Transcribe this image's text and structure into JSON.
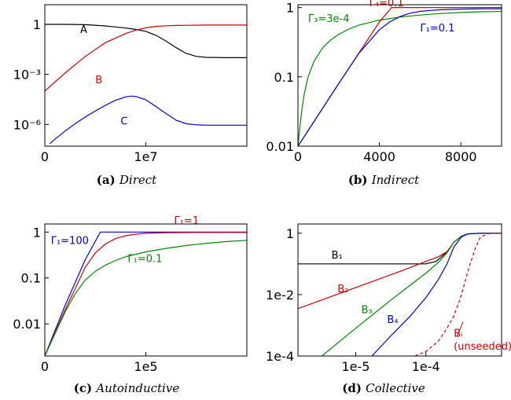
{
  "chart_data": [
    {
      "type": "line",
      "caption": {
        "label": "(a)",
        "title": "Direct"
      },
      "x_scale": "linear",
      "y_scale": "log",
      "xlim": [
        0,
        20000000
      ],
      "ylim": [
        5e-08,
        15
      ],
      "x_ticks": [
        {
          "value": 0,
          "label": "0"
        },
        {
          "value": 10000000,
          "label": "1e7"
        }
      ],
      "y_ticks": [
        {
          "value": 1,
          "label": "1"
        },
        {
          "value": 0.001,
          "label": "10⁻³"
        },
        {
          "value": 1e-06,
          "label": "10⁻⁶"
        }
      ],
      "series": [
        {
          "name": "A",
          "color": "#000000",
          "x": [
            0,
            2000000,
            4000000,
            6000000,
            7000000,
            8000000,
            9000000,
            10000000,
            11000000,
            12000000,
            13000000,
            14000000,
            15000000,
            16000000,
            18000000,
            20000000
          ],
          "y": [
            1,
            1,
            0.95,
            0.8,
            0.7,
            0.6,
            0.5,
            0.38,
            0.22,
            0.1,
            0.04,
            0.018,
            0.012,
            0.0105,
            0.01,
            0.01
          ]
        },
        {
          "name": "B",
          "color": "#cc0000",
          "x": [
            0,
            2000000,
            4000000,
            6000000,
            8000000,
            9000000,
            10000000,
            11000000,
            12000000,
            13000000,
            14000000,
            16000000,
            18000000,
            20000000
          ],
          "y": [
            0.0001,
            0.0012,
            0.012,
            0.08,
            0.28,
            0.45,
            0.62,
            0.75,
            0.82,
            0.86,
            0.88,
            0.9,
            0.9,
            0.9
          ]
        },
        {
          "name": "C",
          "color": "#0000cc",
          "x": [
            500000,
            1000000,
            2000000,
            3000000,
            4000000,
            5000000,
            6000000,
            7000000,
            8000000,
            8500000,
            9000000,
            10000000,
            11000000,
            12000000,
            13000000,
            14000000,
            15000000,
            16000000,
            18000000,
            20000000
          ],
          "y": [
            7e-08,
            1.3e-07,
            4e-07,
            1.1e-06,
            2.8e-06,
            6.5e-06,
            1.4e-05,
            2.8e-05,
            4.5e-05,
            5e-05,
            4.8e-05,
            3e-05,
            1.2e-05,
            4.5e-06,
            1.8e-06,
            1.1e-06,
            9.5e-07,
            9e-07,
            9e-07,
            9e-07
          ]
        }
      ],
      "labels": [
        {
          "text": "A",
          "x": 3500000,
          "y": 0.3,
          "color": "#000000"
        },
        {
          "text": "B",
          "x": 5000000,
          "y": 0.0003,
          "color": "#cc0000"
        },
        {
          "text": "C",
          "x": 7500000,
          "y": 1e-06,
          "color": "#0000cc"
        }
      ]
    },
    {
      "type": "line",
      "caption": {
        "label": "(b)",
        "title": "Indirect"
      },
      "x_scale": "linear",
      "y_scale": "log",
      "xlim": [
        0,
        10000
      ],
      "ylim": [
        0.01,
        1.1
      ],
      "x_ticks": [
        {
          "value": 0,
          "label": "0"
        },
        {
          "value": 4000,
          "label": "4000"
        },
        {
          "value": 8000,
          "label": "8000"
        }
      ],
      "y_ticks": [
        {
          "value": 1,
          "label": "1"
        },
        {
          "value": 0.1,
          "label": "0.1"
        },
        {
          "value": 0.01,
          "label": "0.01"
        }
      ],
      "series": [
        {
          "name": "Γ₃=3e-4",
          "color": "#008800",
          "x": [
            0,
            100,
            200,
            300,
            500,
            800,
            1200,
            1600,
            2000,
            2500,
            3000,
            4000,
            5000,
            6000,
            7000,
            8000,
            9000,
            10000
          ],
          "y": [
            0.01,
            0.02,
            0.035,
            0.055,
            0.1,
            0.17,
            0.26,
            0.34,
            0.41,
            0.49,
            0.56,
            0.66,
            0.73,
            0.78,
            0.82,
            0.85,
            0.87,
            0.88
          ]
        },
        {
          "name": "Γ₄=0.1",
          "color": "#cc0000",
          "x": [
            0,
            2000,
            4000,
            4600,
            5000,
            10000
          ],
          "y": [
            0.01,
            0.08,
            0.62,
            1,
            1,
            1
          ]
        },
        {
          "name": "Γ₁=0.1",
          "color": "#0000cc",
          "x": [
            0,
            2000,
            3000,
            4000,
            4500,
            5000,
            5500,
            6000,
            6500,
            7000,
            8000,
            9000,
            10000
          ],
          "y": [
            0.01,
            0.08,
            0.22,
            0.48,
            0.62,
            0.74,
            0.83,
            0.88,
            0.91,
            0.93,
            0.95,
            0.96,
            0.96
          ]
        }
      ],
      "labels": [
        {
          "text": "Γ₄=0.1",
          "x": 3500,
          "y": 1.05,
          "color": "#cc0000"
        },
        {
          "text": "Γ₃=3e-4",
          "x": 500,
          "y": 0.62,
          "color": "#008800"
        },
        {
          "text": "Γ₁=0.1",
          "x": 6000,
          "y": 0.45,
          "color": "#0000cc"
        }
      ]
    },
    {
      "type": "line",
      "caption": {
        "label": "(c)",
        "title": "Autoinductive"
      },
      "x_scale": "linear",
      "y_scale": "log",
      "xlim": [
        0,
        200000
      ],
      "ylim": [
        0.002,
        1.5
      ],
      "x_ticks": [
        {
          "value": 0,
          "label": "0"
        },
        {
          "value": 100000,
          "label": "1e5"
        }
      ],
      "y_ticks": [
        {
          "value": 1,
          "label": "1"
        },
        {
          "value": 0.1,
          "label": "0.1"
        },
        {
          "value": 0.01,
          "label": "0.01"
        }
      ],
      "series": [
        {
          "name": "Γ₁=100",
          "color": "#0000cc",
          "x": [
            0,
            20000,
            40000,
            55000,
            58000,
            200000
          ],
          "y": [
            0.002,
            0.025,
            0.25,
            1,
            1,
            1
          ]
        },
        {
          "name": "Γ₁=1",
          "color": "#cc0000",
          "x": [
            0,
            20000,
            40000,
            50000,
            60000,
            70000,
            80000,
            90000,
            100000,
            120000,
            150000,
            200000
          ],
          "y": [
            0.002,
            0.02,
            0.17,
            0.35,
            0.55,
            0.72,
            0.83,
            0.9,
            0.94,
            0.97,
            0.98,
            0.98
          ]
        },
        {
          "name": "Γ₁=0.1",
          "color": "#008800",
          "x": [
            0,
            10000,
            20000,
            30000,
            40000,
            50000,
            60000,
            70000,
            80000,
            100000,
            120000,
            140000,
            160000,
            180000,
            200000
          ],
          "y": [
            0.002,
            0.006,
            0.018,
            0.045,
            0.09,
            0.14,
            0.19,
            0.24,
            0.29,
            0.37,
            0.44,
            0.51,
            0.57,
            0.62,
            0.66
          ]
        }
      ],
      "labels": [
        {
          "text": "Γ₁=100",
          "x": 6000,
          "y": 0.55,
          "color": "#0000cc"
        },
        {
          "text": "Γ₁=1",
          "x": 128000,
          "y": 1.5,
          "color": "#cc0000"
        },
        {
          "text": "Γ₁=0.1",
          "x": 82000,
          "y": 0.22,
          "color": "#008800"
        }
      ]
    },
    {
      "type": "line",
      "caption": {
        "label": "(d)",
        "title": "Collective"
      },
      "x_scale": "log",
      "y_scale": "log",
      "xlim": [
        1.5e-06,
        0.0012
      ],
      "ylim": [
        0.0001,
        2
      ],
      "x_ticks": [
        {
          "value": 1e-05,
          "label": "1e-5"
        },
        {
          "value": 0.0001,
          "label": "1e-4"
        }
      ],
      "y_ticks": [
        {
          "value": 1,
          "label": "1"
        },
        {
          "value": 0.01,
          "label": "1e-2"
        },
        {
          "value": 0.0001,
          "label": "1e-4"
        }
      ],
      "series": [
        {
          "name": "B₁",
          "color": "#000000",
          "dashed": false,
          "x": [
            1.5e-06,
            0.0001,
            0.00014,
            0.0002,
            0.00025,
            0.00032,
            0.0004,
            0.0006,
            0.0012
          ],
          "y": [
            0.1,
            0.1,
            0.12,
            0.25,
            0.5,
            0.8,
            0.95,
            1,
            1
          ]
        },
        {
          "name": "B₂",
          "color": "#cc0000",
          "dashed": false,
          "x": [
            1.5e-06,
            1e-05,
            5e-05,
            0.0001,
            0.00015,
            0.0002,
            0.00025,
            0.00032,
            0.0004,
            0.0006,
            0.0012
          ],
          "y": [
            0.0035,
            0.017,
            0.065,
            0.12,
            0.17,
            0.25,
            0.5,
            0.8,
            0.95,
            1,
            1
          ]
        },
        {
          "name": "B₃",
          "color": "#008800",
          "dashed": false,
          "x": [
            3.3e-06,
            1e-05,
            3e-05,
            0.0001,
            0.00015,
            0.0002,
            0.00025,
            0.00032,
            0.0004,
            0.0006,
            0.0012
          ],
          "y": [
            0.0001,
            0.0008,
            0.006,
            0.05,
            0.11,
            0.23,
            0.5,
            0.8,
            0.95,
            1,
            1
          ]
        },
        {
          "name": "B₄",
          "color": "#0000cc",
          "dashed": false,
          "x": [
            1.7e-05,
            3e-05,
            6e-05,
            0.0001,
            0.00015,
            0.0002,
            0.00025,
            0.00032,
            0.0004,
            0.0006,
            0.0012
          ],
          "y": [
            0.0001,
            0.0004,
            0.002,
            0.008,
            0.03,
            0.1,
            0.35,
            0.75,
            0.95,
            1,
            1
          ]
        },
        {
          "name": "Bᵢ (unseeded)",
          "color": "#cc0000",
          "dashed": true,
          "x": [
            7e-05,
            0.0001,
            0.00015,
            0.0002,
            0.00025,
            0.0003,
            0.00035,
            0.0004,
            0.0005,
            0.0006,
            0.0008,
            0.0012
          ],
          "y": [
            0.0001,
            0.00014,
            0.0003,
            0.0008,
            0.002,
            0.006,
            0.02,
            0.06,
            0.3,
            0.75,
            1,
            1
          ]
        }
      ],
      "labels": [
        {
          "text": "B₁",
          "x": 4.5e-06,
          "y": 0.15,
          "color": "#000000"
        },
        {
          "text": "B₂",
          "x": 5.5e-06,
          "y": 0.012,
          "color": "#cc0000"
        },
        {
          "text": "B₃",
          "x": 1.2e-05,
          "y": 0.0025,
          "color": "#008800"
        },
        {
          "text": "B₄",
          "x": 2.8e-05,
          "y": 0.0012,
          "color": "#0000cc"
        },
        {
          "text": "Bᵢ",
          "x": 0.00025,
          "y": 0.00042,
          "color": "#cc0000"
        },
        {
          "text": "(unseeded)",
          "x": 0.00025,
          "y": 0.00016,
          "color": "#cc0000"
        }
      ]
    }
  ]
}
